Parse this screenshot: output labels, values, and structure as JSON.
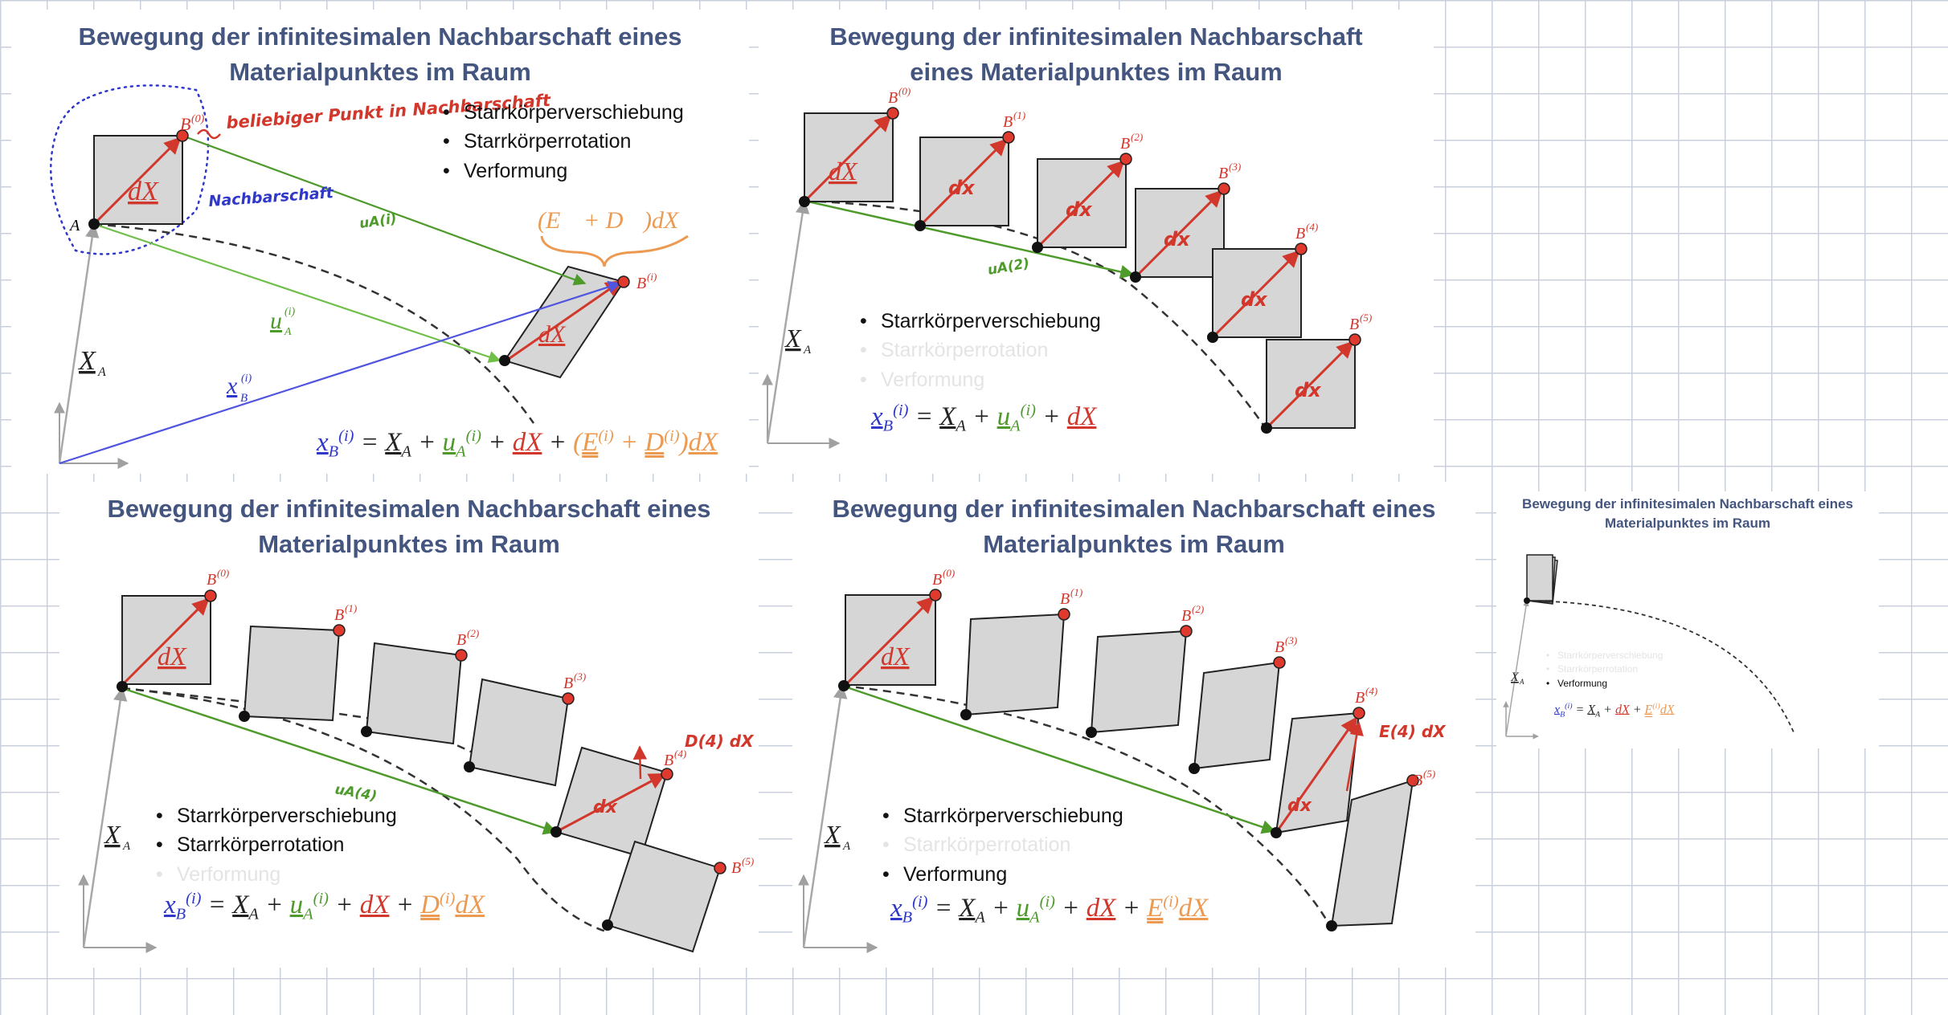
{
  "slide_title": "Bewegung der infinitesimalen Nachbarschaft eines Materialpunktes im Raum",
  "bullets": [
    "Starrkörperverschiebung",
    "Starrkörperrotation",
    "Verformung"
  ],
  "labels": {
    "A": "A",
    "X_A": "X",
    "sub_A": "A",
    "dX": "dX",
    "dx": "dx",
    "B": "B",
    "B0": "(0)",
    "B1": "(1)",
    "B2": "(2)",
    "B3": "(3)",
    "B4": "(4)",
    "B5": "(5)",
    "Bi": "(i)",
    "u_A": "u",
    "x_B": "x",
    "sub_B": "B",
    "sup_i": "(i)",
    "EpD": "(E",
    "EpD_plus": "+ D",
    "EpD_end": ")dX"
  },
  "handwriting": {
    "beliebig": "beliebiger Punkt in Nachbarschaft",
    "nachbarschaft": "Nachbarschaft",
    "u_i": "uA(i)",
    "u_2": "uA(2)",
    "u_4": "uA(4)",
    "D4": "D(4) dX",
    "E4": "E(4) dX"
  },
  "formula": {
    "x": "x",
    "eq": " = ",
    "X": "X",
    "plus": " + ",
    "u": "u",
    "dX": "dX",
    "E": "E",
    "D": "D",
    "lp": "(",
    "rp": ")",
    "sup": "(i)",
    "subB": "B",
    "subA": "A"
  },
  "colors": {
    "title": "#44557f",
    "blue": "#2f38c8",
    "green": "#4e9b2c",
    "lightgreen": "#8fd26c",
    "red": "#d2372c",
    "orange": "#ec9a52",
    "square_fill": "#d6d6d6",
    "grid": "#c9d0dc"
  }
}
